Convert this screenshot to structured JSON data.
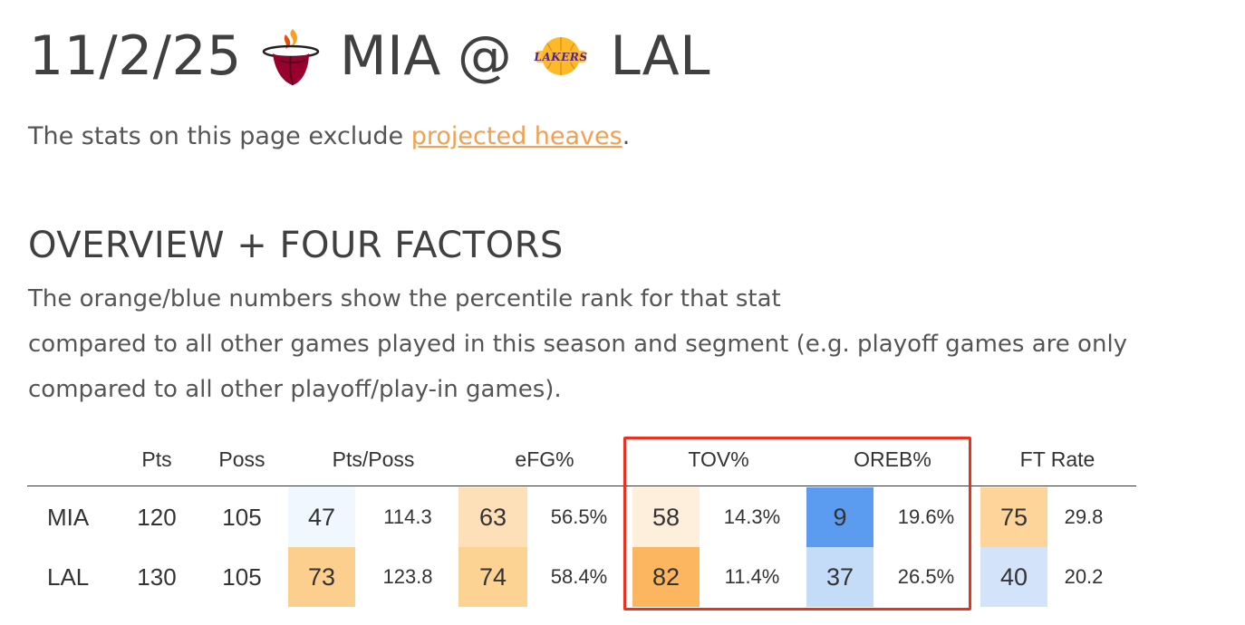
{
  "header": {
    "date": "11/2/25",
    "away_team": "MIA",
    "at": "@",
    "home_team": "LAL",
    "away_logo_icon": "heat-logo-icon",
    "home_logo_icon": "lakers-logo-icon",
    "lakers_logo_text": "LAKERS"
  },
  "note": {
    "prefix": "The stats on this page exclude ",
    "link_text": "projected heaves",
    "suffix": "."
  },
  "section": {
    "title": "OVERVIEW + FOUR FACTORS",
    "description_lines": [
      "The orange/blue numbers show the percentile rank for that stat",
      "compared to all other games played in this season and segment (e.g. playoff games are only",
      "compared to all other playoff/play-in games)."
    ]
  },
  "table": {
    "headers": {
      "pts": "Pts",
      "poss": "Poss",
      "pts_poss": "Pts/Poss",
      "efg": "eFG%",
      "tov": "TOV%",
      "oreb": "OREB%",
      "ft_rate": "FT Rate"
    },
    "rows": [
      {
        "team": "MIA",
        "pts": "120",
        "poss": "105",
        "pts_poss_pct": "47",
        "pts_poss_val": "114.3",
        "efg_pct": "63",
        "efg_val": "56.5%",
        "tov_pct": "58",
        "tov_val": "14.3%",
        "oreb_pct": "9",
        "oreb_val": "19.6%",
        "ft_pct": "75",
        "ft_val": "29.8"
      },
      {
        "team": "LAL",
        "pts": "130",
        "poss": "105",
        "pts_poss_pct": "73",
        "pts_poss_val": "123.8",
        "efg_pct": "74",
        "efg_val": "58.4%",
        "tov_pct": "82",
        "tov_val": "11.4%",
        "oreb_pct": "37",
        "oreb_val": "26.5%",
        "ft_pct": "40",
        "ft_val": "20.2"
      }
    ],
    "colors": {
      "r0_pts_poss": "#f1f7fe",
      "r0_efg": "#fde0b8",
      "r0_tov": "#feefdc",
      "r0_oreb": "#5c9cf0",
      "r0_ft": "#fdd49a",
      "r1_pts_poss": "#fdcf8f",
      "r1_efg": "#fdd394",
      "r1_tov": "#fdb660",
      "r1_oreb": "#c5dcf8",
      "r1_ft": "#d3e4fa"
    },
    "highlight_color": "#e8321f"
  }
}
